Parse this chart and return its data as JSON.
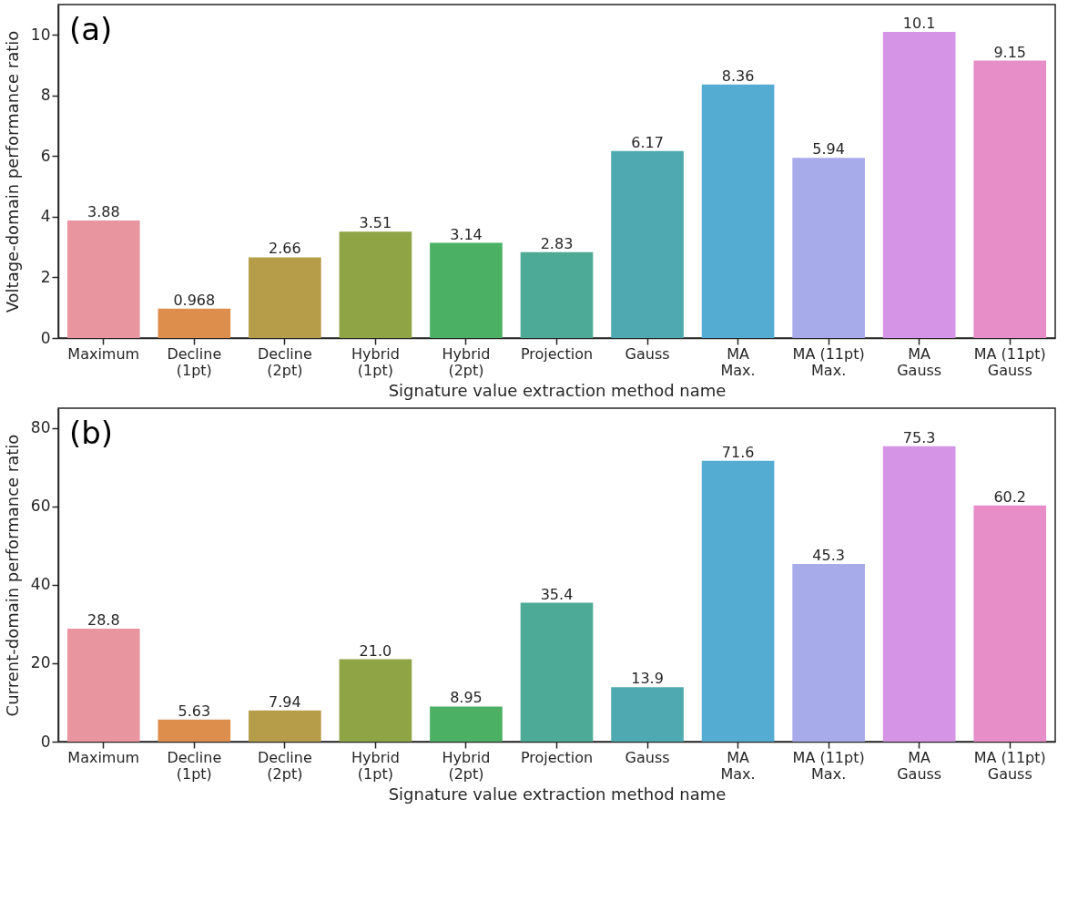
{
  "chart_data": [
    {
      "type": "bar",
      "xlabel": "Signature value extraction method name",
      "ylabel": "Voltage-domain performance ratio",
      "annotations": [
        "(a)"
      ],
      "categories": [
        "Maximum",
        "Decline\n(1pt)",
        "Decline\n(2pt)",
        "Hybrid\n(1pt)",
        "Hybrid\n(2pt)",
        "Projection",
        "Gauss",
        "MA\nMax.",
        "MA (11pt)\nMax.",
        "MA\nGauss",
        "MA (11pt)\nGauss"
      ],
      "values": [
        3.88,
        0.968,
        2.66,
        3.51,
        3.14,
        2.83,
        6.17,
        8.36,
        5.94,
        10.1,
        9.15
      ],
      "colors": [
        "#e8959f",
        "#dd8e4c",
        "#b59d4a",
        "#8fa444",
        "#4bb063",
        "#4caa96",
        "#4eaab0",
        "#55acd3",
        "#a8abe9",
        "#d594e6",
        "#e78ec8"
      ],
      "data_labels": true,
      "ylim": [
        0,
        11
      ],
      "yticks": [
        0,
        2,
        4,
        6,
        8,
        10
      ],
      "grid": false
    },
    {
      "type": "bar",
      "xlabel": "Signature value extraction method name",
      "ylabel": "Current-domain performance ratio",
      "annotations": [
        "(b)"
      ],
      "categories": [
        "Maximum",
        "Decline\n(1pt)",
        "Decline\n(2pt)",
        "Hybrid\n(1pt)",
        "Hybrid\n(2pt)",
        "Projection",
        "Gauss",
        "MA\nMax.",
        "MA (11pt)\nMax.",
        "MA\nGauss",
        "MA (11pt)\nGauss"
      ],
      "values": [
        28.8,
        5.63,
        7.94,
        21.0,
        8.95,
        35.4,
        13.9,
        71.6,
        45.3,
        75.3,
        60.2
      ],
      "value_labels": [
        "28.8",
        "5.63",
        "7.94",
        "21.0",
        "8.95",
        "35.4",
        "13.9",
        "71.6",
        "45.3",
        "75.3",
        "60.2"
      ],
      "colors": [
        "#e8959f",
        "#dd8e4c",
        "#b59d4a",
        "#8fa444",
        "#4bb063",
        "#4caa96",
        "#4eaab0",
        "#55acd3",
        "#a8abe9",
        "#d594e6",
        "#e78ec8"
      ],
      "ylim": [
        0,
        85
      ],
      "yticks": [
        0,
        20,
        40,
        60,
        80
      ],
      "grid": false
    }
  ]
}
